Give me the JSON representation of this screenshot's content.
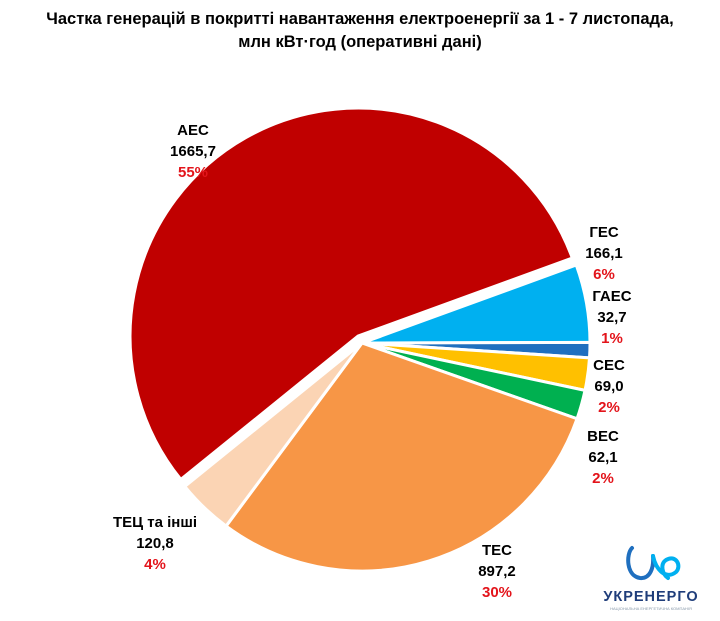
{
  "title_line1": "Частка генерацій в покритті навантаження електроенергії за 1 - 7 листопада,",
  "title_line2": "млн кВт·год (оперативні дані)",
  "logo": {
    "name": "УКРЕНЕРГО",
    "tagline": "НАЦІОНАЛЬНА ЕНЕРГЕТИЧНА КОМПАНІЯ"
  },
  "chart_data": {
    "type": "pie",
    "title": "Частка генерацій в покритті навантаження електроенергії за 1 - 7 листопада, млн кВт·год (оперативні дані)",
    "categories": [
      "ГЕС",
      "ГАЕС",
      "СЕС",
      "ВЕС",
      "ТЕС",
      "ТЕЦ та інші",
      "АЕС"
    ],
    "values": [
      166.1,
      32.7,
      69.0,
      62.1,
      897.2,
      120.8,
      1665.7
    ],
    "value_labels": [
      "166,1",
      "32,7",
      "69,0",
      "62,1",
      "897,2",
      "120,8",
      "1665,7"
    ],
    "percent_labels": [
      "6%",
      "1%",
      "2%",
      "2%",
      "30%",
      "4%",
      "55%"
    ],
    "colors": [
      "#00b0f0",
      "#1f6fbf",
      "#ffc000",
      "#00b050",
      "#f79646",
      "#fbd4b4",
      "#c00000"
    ],
    "exploded": "АЕС",
    "legend": "none"
  }
}
